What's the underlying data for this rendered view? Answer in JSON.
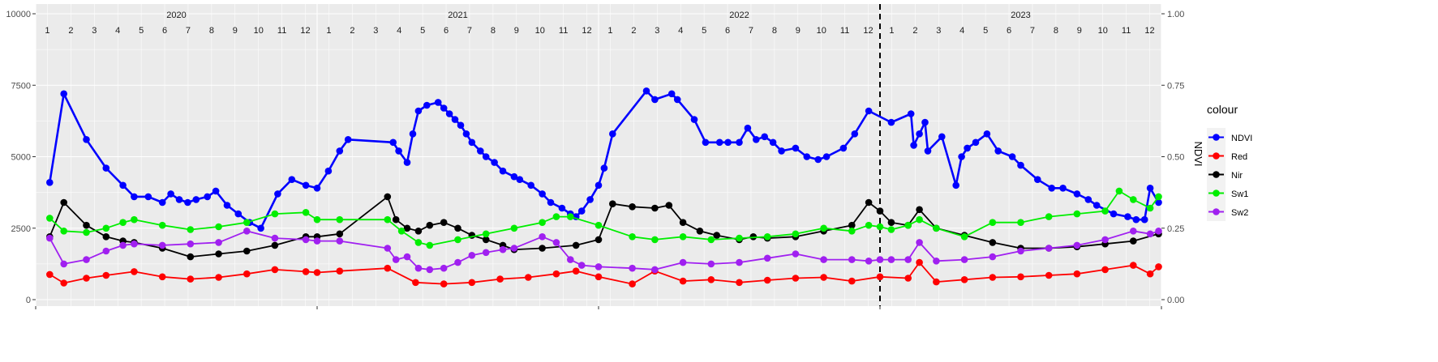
{
  "chart_data": {
    "type": "line",
    "title": "",
    "xlabel": "",
    "ylabel": "",
    "y2label": "NDVI",
    "ylim": [
      0,
      10000
    ],
    "y2lim": [
      0,
      1
    ],
    "yticks": [
      "0",
      "2500",
      "5000",
      "7500",
      "10000"
    ],
    "y2ticks": [
      "0.00",
      "0.25",
      "0.50",
      "0.75",
      "1.00"
    ],
    "xlim": [
      2020.0,
      2024.0
    ],
    "years": [
      {
        "label": "2020",
        "x": 2020.5
      },
      {
        "label": "2021",
        "x": 2021.5
      },
      {
        "label": "2022",
        "x": 2022.5
      },
      {
        "label": "2023",
        "x": 2023.5
      }
    ],
    "month_labels": [
      "1",
      "2",
      "3",
      "4",
      "5",
      "6",
      "7",
      "8",
      "9",
      "10",
      "11",
      "12"
    ],
    "vline_x": 2023.0,
    "grid": true,
    "legend_title": "colour",
    "legend_position": "right",
    "series": [
      {
        "name": "NDVI",
        "color": "#0000ff",
        "x": [
          2020.05,
          2020.1,
          2020.18,
          2020.25,
          2020.31,
          2020.35,
          2020.4,
          2020.45,
          2020.48,
          2020.51,
          2020.54,
          2020.57,
          2020.61,
          2020.64,
          2020.68,
          2020.72,
          2020.76,
          2020.8,
          2020.86,
          2020.91,
          2020.96,
          2021.0,
          2021.04,
          2021.08,
          2021.11,
          2021.27,
          2021.29,
          2021.32,
          2021.34,
          2021.36,
          2021.39,
          2021.43,
          2021.45,
          2021.47,
          2021.49,
          2021.51,
          2021.53,
          2021.55,
          2021.58,
          2021.6,
          2021.63,
          2021.66,
          2021.7,
          2021.72,
          2021.76,
          2021.8,
          2021.83,
          2021.87,
          2021.9,
          2021.92,
          2021.94,
          2021.97,
          2022.0,
          2022.02,
          2022.05,
          2022.17,
          2022.2,
          2022.26,
          2022.28,
          2022.34,
          2022.38,
          2022.43,
          2022.46,
          2022.5,
          2022.53,
          2022.56,
          2022.59,
          2022.62,
          2022.65,
          2022.7,
          2022.74,
          2022.78,
          2022.81,
          2022.87,
          2022.91,
          2022.96,
          2023.04,
          2023.11,
          2023.12,
          2023.14,
          2023.16,
          2023.17,
          2023.22,
          2023.27,
          2023.29,
          2023.31,
          2023.34,
          2023.38,
          2023.42,
          2023.47,
          2023.5,
          2023.56,
          2023.61,
          2023.65,
          2023.7,
          2023.74,
          2023.77,
          2023.83,
          2023.88,
          2023.91,
          2023.94,
          2023.96,
          2023.99
        ],
        "y": [
          0.41,
          0.72,
          0.56,
          0.46,
          0.4,
          0.36,
          0.36,
          0.34,
          0.37,
          0.35,
          0.34,
          0.35,
          0.36,
          0.38,
          0.33,
          0.3,
          0.27,
          0.25,
          0.37,
          0.42,
          0.4,
          0.39,
          0.45,
          0.52,
          0.56,
          0.55,
          0.52,
          0.48,
          0.58,
          0.66,
          0.68,
          0.69,
          0.67,
          0.65,
          0.63,
          0.61,
          0.58,
          0.55,
          0.52,
          0.5,
          0.48,
          0.45,
          0.43,
          0.42,
          0.4,
          0.37,
          0.34,
          0.32,
          0.3,
          0.29,
          0.31,
          0.35,
          0.4,
          0.46,
          0.58,
          0.73,
          0.7,
          0.72,
          0.7,
          0.63,
          0.55,
          0.55,
          0.55,
          0.55,
          0.6,
          0.56,
          0.57,
          0.55,
          0.52,
          0.53,
          0.5,
          0.49,
          0.5,
          0.53,
          0.58,
          0.66,
          0.62,
          0.65,
          0.54,
          0.58,
          0.62,
          0.52,
          0.57,
          0.4,
          0.5,
          0.53,
          0.55,
          0.58,
          0.52,
          0.5,
          0.47,
          0.42,
          0.39,
          0.39,
          0.37,
          0.35,
          0.33,
          0.3,
          0.29,
          0.28,
          0.28,
          0.39,
          0.34
        ]
      },
      {
        "name": "Red",
        "color": "#ff0000",
        "x": [
          2020.05,
          2020.1,
          2020.18,
          2020.25,
          2020.35,
          2020.45,
          2020.55,
          2020.65,
          2020.75,
          2020.85,
          2020.96,
          2021.0,
          2021.08,
          2021.25,
          2021.35,
          2021.45,
          2021.55,
          2021.65,
          2021.75,
          2021.85,
          2021.92,
          2022.0,
          2022.12,
          2022.2,
          2022.3,
          2022.4,
          2022.5,
          2022.6,
          2022.7,
          2022.8,
          2022.9,
          2023.0,
          2023.1,
          2023.14,
          2023.2,
          2023.3,
          2023.4,
          2023.5,
          2023.6,
          2023.7,
          2023.8,
          2023.9,
          2023.96,
          2023.99
        ],
        "y": [
          880,
          580,
          750,
          850,
          980,
          800,
          720,
          780,
          900,
          1050,
          980,
          950,
          1000,
          1100,
          600,
          550,
          600,
          720,
          780,
          900,
          1000,
          800,
          550,
          1000,
          650,
          700,
          600,
          680,
          750,
          780,
          650,
          800,
          750,
          1300,
          620,
          700,
          780,
          800,
          850,
          900,
          1050,
          1200,
          900,
          1150
        ]
      },
      {
        "name": "Nir",
        "color": "#000000",
        "x": [
          2020.05,
          2020.1,
          2020.18,
          2020.25,
          2020.31,
          2020.35,
          2020.45,
          2020.55,
          2020.65,
          2020.75,
          2020.85,
          2020.96,
          2021.0,
          2021.08,
          2021.25,
          2021.28,
          2021.32,
          2021.36,
          2021.4,
          2021.45,
          2021.5,
          2021.55,
          2021.6,
          2021.66,
          2021.7,
          2021.8,
          2021.92,
          2022.0,
          2022.05,
          2022.12,
          2022.2,
          2022.25,
          2022.3,
          2022.36,
          2022.42,
          2022.5,
          2022.55,
          2022.6,
          2022.7,
          2022.8,
          2022.9,
          2022.96,
          2023.0,
          2023.04,
          2023.1,
          2023.14,
          2023.2,
          2023.3,
          2023.4,
          2023.5,
          2023.6,
          2023.7,
          2023.8,
          2023.9,
          2023.99
        ],
        "y": [
          2200,
          3400,
          2600,
          2200,
          2050,
          2000,
          1800,
          1500,
          1600,
          1700,
          1900,
          2200,
          2200,
          2300,
          3600,
          2800,
          2500,
          2400,
          2600,
          2700,
          2500,
          2250,
          2100,
          1900,
          1750,
          1800,
          1900,
          2100,
          3350,
          3250,
          3200,
          3300,
          2700,
          2400,
          2250,
          2100,
          2200,
          2150,
          2200,
          2400,
          2600,
          3400,
          3100,
          2700,
          2600,
          3150,
          2500,
          2250,
          2000,
          1800,
          1800,
          1850,
          1950,
          2050,
          2300
        ]
      },
      {
        "name": "Sw1",
        "color": "#00ee00",
        "x": [
          2020.05,
          2020.1,
          2020.18,
          2020.25,
          2020.31,
          2020.35,
          2020.45,
          2020.55,
          2020.65,
          2020.75,
          2020.85,
          2020.96,
          2021.0,
          2021.08,
          2021.25,
          2021.3,
          2021.36,
          2021.4,
          2021.5,
          2021.6,
          2021.7,
          2021.8,
          2021.85,
          2021.9,
          2022.0,
          2022.12,
          2022.2,
          2022.3,
          2022.4,
          2022.5,
          2022.6,
          2022.7,
          2022.8,
          2022.9,
          2022.96,
          2023.0,
          2023.04,
          2023.1,
          2023.14,
          2023.2,
          2023.3,
          2023.4,
          2023.5,
          2023.6,
          2023.7,
          2023.8,
          2023.85,
          2023.9,
          2023.96,
          2023.99
        ],
        "y": [
          2850,
          2400,
          2350,
          2500,
          2700,
          2800,
          2600,
          2450,
          2550,
          2700,
          3000,
          3050,
          2800,
          2800,
          2800,
          2400,
          2000,
          1900,
          2100,
          2300,
          2500,
          2700,
          2900,
          2900,
          2600,
          2200,
          2100,
          2200,
          2100,
          2150,
          2200,
          2300,
          2500,
          2400,
          2600,
          2550,
          2450,
          2600,
          2800,
          2500,
          2200,
          2700,
          2700,
          2900,
          3000,
          3100,
          3800,
          3500,
          3200,
          3600
        ]
      },
      {
        "name": "Sw2",
        "color": "#a020f0",
        "x": [
          2020.05,
          2020.1,
          2020.18,
          2020.25,
          2020.31,
          2020.35,
          2020.45,
          2020.55,
          2020.65,
          2020.75,
          2020.85,
          2020.96,
          2021.0,
          2021.08,
          2021.25,
          2021.28,
          2021.32,
          2021.36,
          2021.4,
          2021.45,
          2021.5,
          2021.55,
          2021.6,
          2021.66,
          2021.7,
          2021.8,
          2021.85,
          2021.9,
          2021.94,
          2022.0,
          2022.12,
          2022.2,
          2022.3,
          2022.4,
          2022.5,
          2022.6,
          2022.7,
          2022.8,
          2022.9,
          2022.96,
          2023.0,
          2023.04,
          2023.1,
          2023.14,
          2023.2,
          2023.3,
          2023.4,
          2023.5,
          2023.6,
          2023.7,
          2023.8,
          2023.9,
          2023.96,
          2023.99
        ],
        "y": [
          2150,
          1250,
          1400,
          1700,
          1900,
          1950,
          1900,
          1950,
          2000,
          2400,
          2150,
          2100,
          2050,
          2050,
          1800,
          1400,
          1500,
          1100,
          1050,
          1100,
          1300,
          1550,
          1650,
          1750,
          1800,
          2200,
          2000,
          1400,
          1200,
          1150,
          1100,
          1050,
          1300,
          1250,
          1300,
          1450,
          1600,
          1400,
          1400,
          1350,
          1400,
          1400,
          1400,
          2000,
          1350,
          1400,
          1500,
          1700,
          1800,
          1900,
          2100,
          2400,
          2300,
          2400
        ]
      }
    ]
  }
}
